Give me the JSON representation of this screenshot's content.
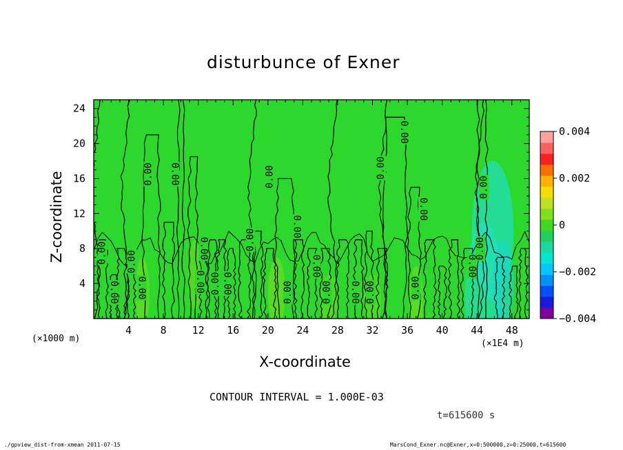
{
  "title": "disturbunce of Exner",
  "xlabel": "X-coordinate",
  "ylabel": "Z-coordinate",
  "x_scale_label": "(×1000 m)",
  "x_scale_label2": "(×1E4 m)",
  "contour_interval": "CONTOUR INTERVAL = 1.000E-03",
  "time_label": "t=615600 s",
  "footer_left": "./gpview_dist-from-xmean  2011-07-15",
  "footer_right": "MarsCond_Exner.nc@Exner,x=0:500000,z=0:25000,t=615600",
  "chart_data": {
    "type": "heatmap",
    "title": "disturbunce of Exner",
    "xlabel": "X-coordinate",
    "ylabel": "Z-coordinate",
    "xlim": [
      0,
      50
    ],
    "ylim": [
      0,
      25
    ],
    "x_ticks": [
      4,
      8,
      12,
      16,
      20,
      24,
      28,
      32,
      36,
      40,
      44,
      48
    ],
    "y_ticks": [
      4,
      8,
      12,
      16,
      20,
      24
    ],
    "colorbar_range": [
      -0.004,
      0.004
    ],
    "colorbar_ticks": [
      "0.004",
      "0.002",
      "0",
      "−0.002",
      "−0.004"
    ],
    "colorbar_colors": [
      "#8000a0",
      "#1a1ad8",
      "#0050ff",
      "#0090ff",
      "#00c8ff",
      "#00e6d0",
      "#19d9a0",
      "#20d060",
      "#40d820",
      "#80e020",
      "#c0e020",
      "#f0e000",
      "#ffb000",
      "#ff7000",
      "#ff2020",
      "#ff6060",
      "#ffa0a0"
    ],
    "background_color": "#2cd82c",
    "contour_label": "0.00",
    "contour_interval": 0.001
  }
}
